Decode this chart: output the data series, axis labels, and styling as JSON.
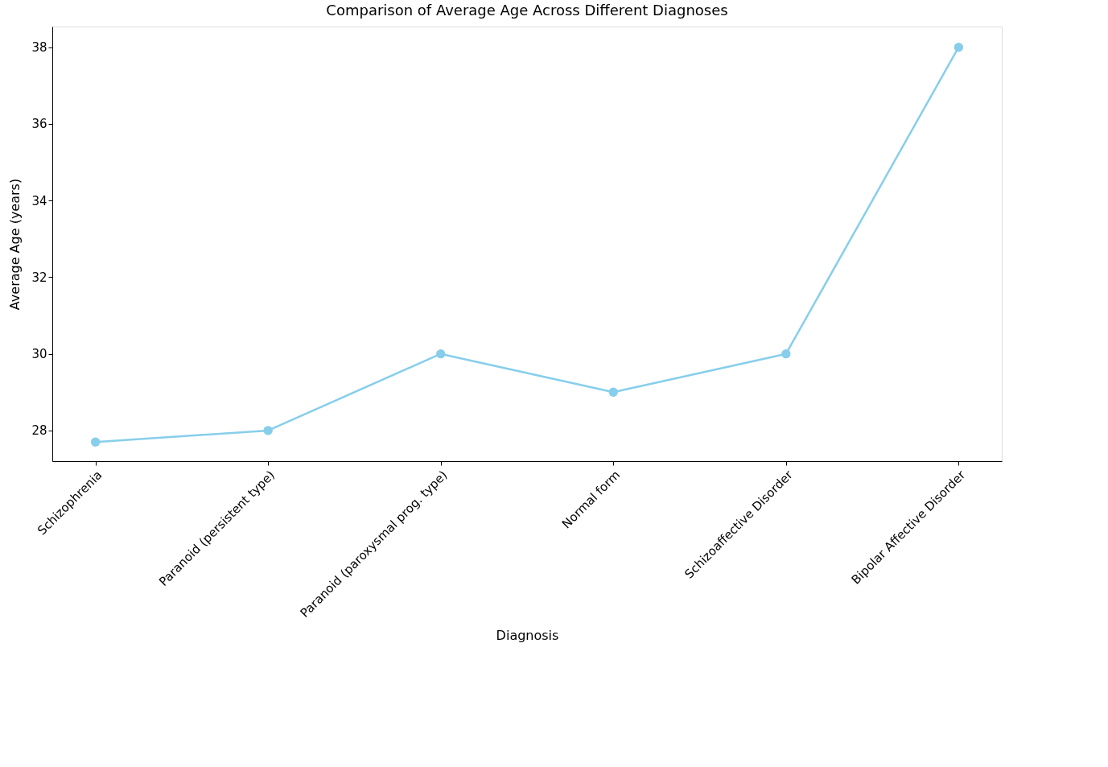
{
  "chart_data": {
    "type": "line",
    "title": "Comparison of Average Age Across Different Diagnoses",
    "xlabel": "Diagnosis",
    "ylabel": "Average Age (years)",
    "categories": [
      "Schizophrenia",
      "Paranoid (persistent type)",
      "Paranoid (paroxysmal prog. type)",
      "Normal form",
      "Schizoaffective Disorder",
      "Bipolar Affective Disorder"
    ],
    "series": [
      {
        "color": "#87ceeb",
        "values": [
          27.7,
          28,
          30,
          29,
          30,
          38
        ]
      }
    ],
    "ylim": [
      27.2,
      38.54
    ],
    "yticks": [
      28,
      30,
      32,
      34,
      36,
      38
    ],
    "marker": "circle",
    "line_style": "solid",
    "grid": false,
    "legend": false
  }
}
